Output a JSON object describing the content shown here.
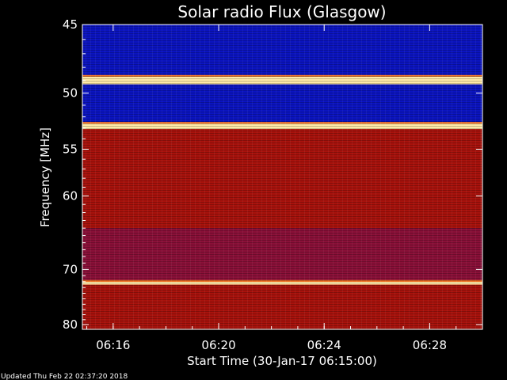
{
  "chart_data": {
    "type": "heatmap",
    "title": "Solar radio Flux (Glasgow)",
    "xlabel": "Start Time (30-Jan-17 06:15:00)",
    "ylabel": "Frequency [MHz]",
    "x_range": [
      "06:14:50",
      "06:30:00"
    ],
    "ylim": [
      45,
      81
    ],
    "y_scale": "reciprocal",
    "x_ticks": [
      "06:16",
      "06:20",
      "06:24",
      "06:28"
    ],
    "y_ticks": [
      45,
      50,
      55,
      60,
      70,
      80
    ],
    "colormap": "blue-red-yellow-white",
    "bands": [
      {
        "from_mhz": 45.0,
        "to_mhz": 48.7,
        "level": "low"
      },
      {
        "from_mhz": 48.7,
        "to_mhz": 49.3,
        "level": "very high"
      },
      {
        "from_mhz": 49.3,
        "to_mhz": 52.6,
        "level": "low"
      },
      {
        "from_mhz": 52.6,
        "to_mhz": 53.1,
        "level": "very high"
      },
      {
        "from_mhz": 53.1,
        "to_mhz": 64.0,
        "level": "medium"
      },
      {
        "from_mhz": 64.0,
        "to_mhz": 72.0,
        "level": "medium-low"
      },
      {
        "from_mhz": 72.0,
        "to_mhz": 72.5,
        "level": "very high"
      },
      {
        "from_mhz": 72.5,
        "to_mhz": 81.0,
        "level": "medium"
      }
    ],
    "colors": {
      "low": "#0a12b8",
      "medium": "#a8100a",
      "very_high": "#ffe8a0"
    }
  },
  "footer": {
    "updated": "Updated Thu Feb 22 02:37:20 2018"
  }
}
